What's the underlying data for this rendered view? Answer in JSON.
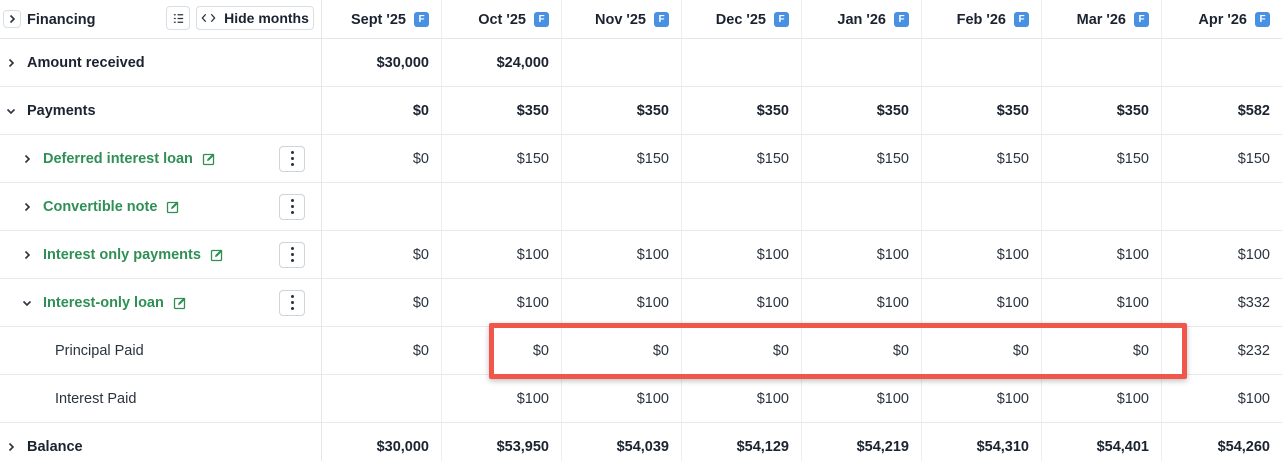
{
  "header": {
    "section_title": "Financing",
    "hide_months_label": "Hide months",
    "months": [
      {
        "label": "Sept '25",
        "badge": "F"
      },
      {
        "label": "Oct '25",
        "badge": "F"
      },
      {
        "label": "Nov '25",
        "badge": "F"
      },
      {
        "label": "Dec '25",
        "badge": "F"
      },
      {
        "label": "Jan '26",
        "badge": "F"
      },
      {
        "label": "Feb '26",
        "badge": "F"
      },
      {
        "label": "Mar '26",
        "badge": "F"
      },
      {
        "label": "Apr '26",
        "badge": "F"
      }
    ]
  },
  "rows": [
    {
      "label": "Amount received",
      "values": [
        "$30,000",
        "$24,000",
        "",
        "",
        "",
        "",
        "",
        ""
      ]
    },
    {
      "label": "Payments",
      "values": [
        "$0",
        "$350",
        "$350",
        "$350",
        "$350",
        "$350",
        "$350",
        "$582"
      ]
    },
    {
      "label": "Deferred interest loan",
      "values": [
        "$0",
        "$150",
        "$150",
        "$150",
        "$150",
        "$150",
        "$150",
        "$150"
      ]
    },
    {
      "label": "Convertible note",
      "values": [
        "",
        "",
        "",
        "",
        "",
        "",
        "",
        ""
      ]
    },
    {
      "label": "Interest only payments",
      "values": [
        "$0",
        "$100",
        "$100",
        "$100",
        "$100",
        "$100",
        "$100",
        "$100"
      ]
    },
    {
      "label": "Interest-only loan",
      "values": [
        "$0",
        "$100",
        "$100",
        "$100",
        "$100",
        "$100",
        "$100",
        "$332"
      ]
    },
    {
      "label": "Principal Paid",
      "values": [
        "$0",
        "$0",
        "$0",
        "$0",
        "$0",
        "$0",
        "$0",
        "$232"
      ]
    },
    {
      "label": "Interest Paid",
      "values": [
        "",
        "$100",
        "$100",
        "$100",
        "$100",
        "$100",
        "$100",
        "$100"
      ]
    },
    {
      "label": "Balance",
      "values": [
        "$30,000",
        "$53,950",
        "$54,039",
        "$54,129",
        "$54,219",
        "$54,310",
        "$54,401",
        "$54,260"
      ]
    }
  ],
  "colors": {
    "accent_green": "#2f8f55",
    "badge_blue": "#4a90e2",
    "highlight_red": "#f0574a"
  }
}
